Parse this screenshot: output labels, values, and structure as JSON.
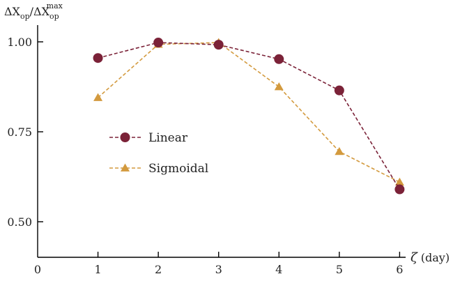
{
  "chart_data": {
    "type": "line",
    "ylabel_base": "ΔX",
    "ylabel_sub1": "op",
    "ylabel_sep": "/ΔX",
    "ylabel_sub2": "op",
    "ylabel_sup2": "max",
    "xlabel_symbol": "ζ",
    "xlabel_unit": "(day)",
    "xlim": [
      0,
      6
    ],
    "ylim": [
      0.39,
      1.05
    ],
    "x_ticks": [
      0,
      1,
      2,
      3,
      4,
      5,
      6
    ],
    "y_ticks": [
      0.5,
      0.75,
      1.0
    ],
    "x_tick_labels": [
      "0",
      "1",
      "2",
      "3",
      "4",
      "5",
      "6"
    ],
    "y_tick_labels": [
      "0.50",
      "0.75",
      "1.00"
    ],
    "grid": false,
    "legend_placement": "center-left",
    "series": [
      {
        "name": "Linear",
        "marker": "circle",
        "color": "#7b2238",
        "x": [
          1,
          2,
          3,
          4,
          5,
          6
        ],
        "y": [
          0.955,
          0.998,
          0.992,
          0.952,
          0.865,
          0.59
        ]
      },
      {
        "name": "Sigmoidal",
        "marker": "triangle",
        "color": "#d39a3e",
        "x": [
          1,
          2,
          3,
          4,
          5,
          6
        ],
        "y": [
          0.845,
          0.993,
          0.998,
          0.875,
          0.695,
          0.61
        ]
      }
    ]
  }
}
